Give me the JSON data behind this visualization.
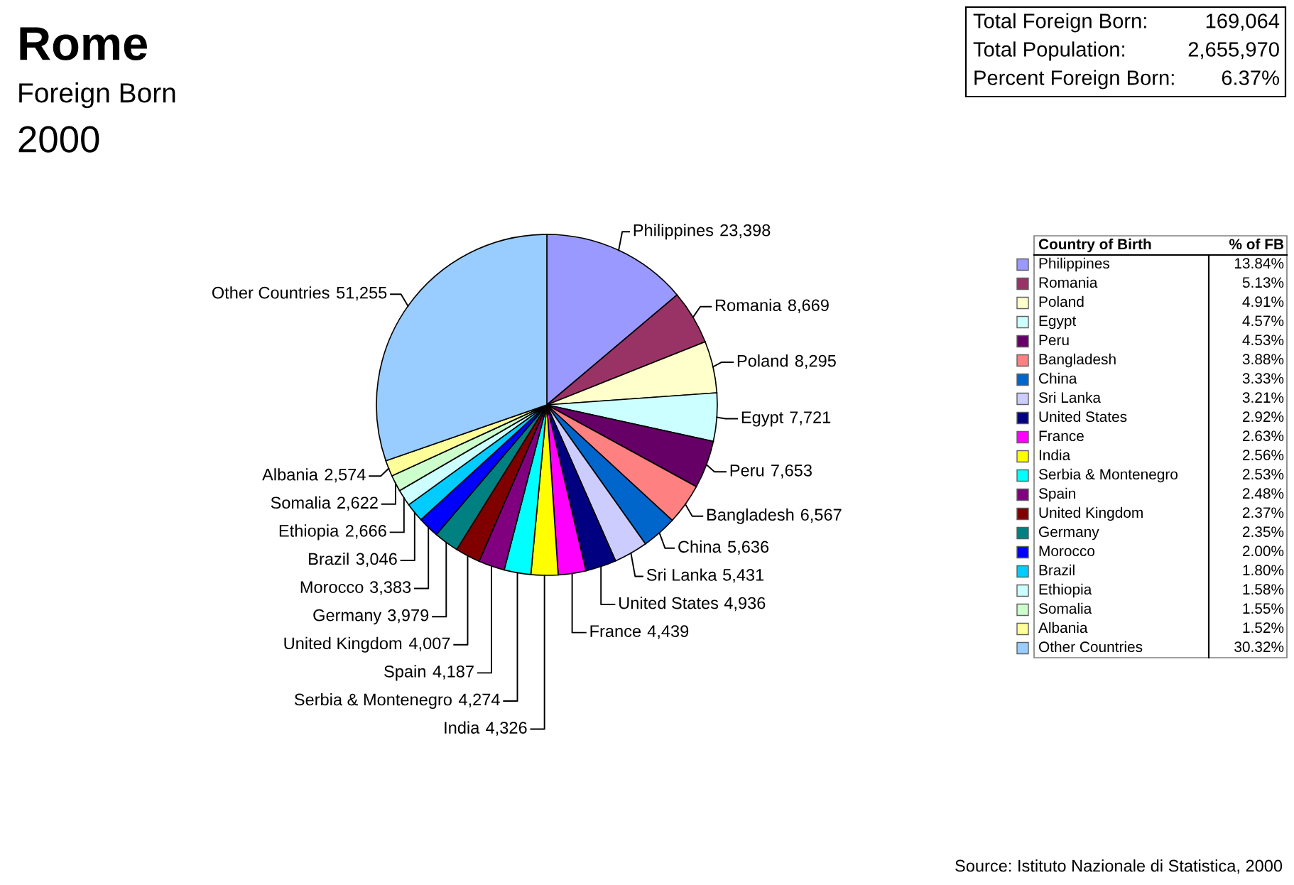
{
  "chart_data": [
    {
      "type": "pie",
      "title": "Rome",
      "subtitle": "Foreign Born",
      "legend": "right",
      "legend_title": "Country of Birth",
      "value_labels": [
        "23,398",
        "8,669",
        "8,295",
        "7,721",
        "7,653",
        "6,567",
        "5,636",
        "5,431",
        "4,936",
        "4,439",
        "4,326",
        "4,274",
        "4,187",
        "4,007",
        "3,979",
        "3,383",
        "3,046",
        "2,666",
        "2,622",
        "2,574",
        "51,255"
      ],
      "categories": [
        "Philippines",
        "Romania",
        "Poland",
        "Egypt",
        "Peru",
        "Bangladesh",
        "China",
        "Sri Lanka",
        "United States",
        "France",
        "India",
        "Serbia & Montenegro",
        "Spain",
        "United Kingdom",
        "Germany",
        "Morocco",
        "Brazil",
        "Ethiopia",
        "Somalia",
        "Albania",
        "Other Countries"
      ],
      "values": [
        23398,
        8669,
        8295,
        7721,
        7653,
        6567,
        5636,
        5431,
        4936,
        4439,
        4326,
        4274,
        4187,
        4007,
        3979,
        3383,
        3046,
        2666,
        2622,
        2574,
        51255
      ],
      "colors": [
        "#9999ff",
        "#993366",
        "#ffffcc",
        "#ccffff",
        "#660066",
        "#ff8080",
        "#0066cc",
        "#ccccff",
        "#000080",
        "#ff00ff",
        "#ffff00",
        "#00ffff",
        "#800080",
        "#800000",
        "#008080",
        "#0000ff",
        "#00ccff",
        "#ccffff",
        "#ccffcc",
        "#ffff99",
        "#99ccff"
      ],
      "annotations": [
        "2000",
        "Source: Istituto Nazionale di Statistica, 2000"
      ]
    },
    {
      "type": "other",
      "title": "% of FB",
      "annotations": [
        "13.84%",
        "5.13%",
        "4.91%",
        "4.57%",
        "4.53%",
        "3.88%",
        "3.33%",
        "3.21%",
        "2.92%",
        "2.63%",
        "2.56%",
        "2.53%",
        "2.48%",
        "2.37%",
        "2.35%",
        "2.00%",
        "1.80%",
        "1.58%",
        "1.55%",
        "1.52%",
        "30.32%"
      ]
    },
    {
      "type": "other",
      "annotations": [
        "Total Foreign Born:",
        "169,064",
        "Total Population:",
        "2,655,970",
        "Percent Foreign Born:",
        "6.37%"
      ]
    }
  ]
}
